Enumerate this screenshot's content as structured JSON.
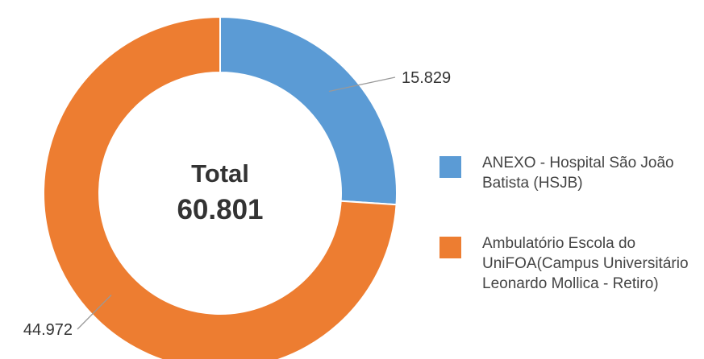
{
  "chart_data": {
    "type": "donut",
    "center_title": "Total",
    "center_value": "60.801",
    "categories": [
      "ANEXO - Hospital São João Batista (HSJB)",
      "Ambulatório Escola do UniFOA(Campus Universitário Leonardo Mollica - Retiro)"
    ],
    "values": [
      15829,
      44972
    ],
    "value_labels": [
      "15.829",
      "44.972"
    ],
    "colors": [
      "#5b9bd5",
      "#ed7d31"
    ],
    "legend": "right"
  }
}
